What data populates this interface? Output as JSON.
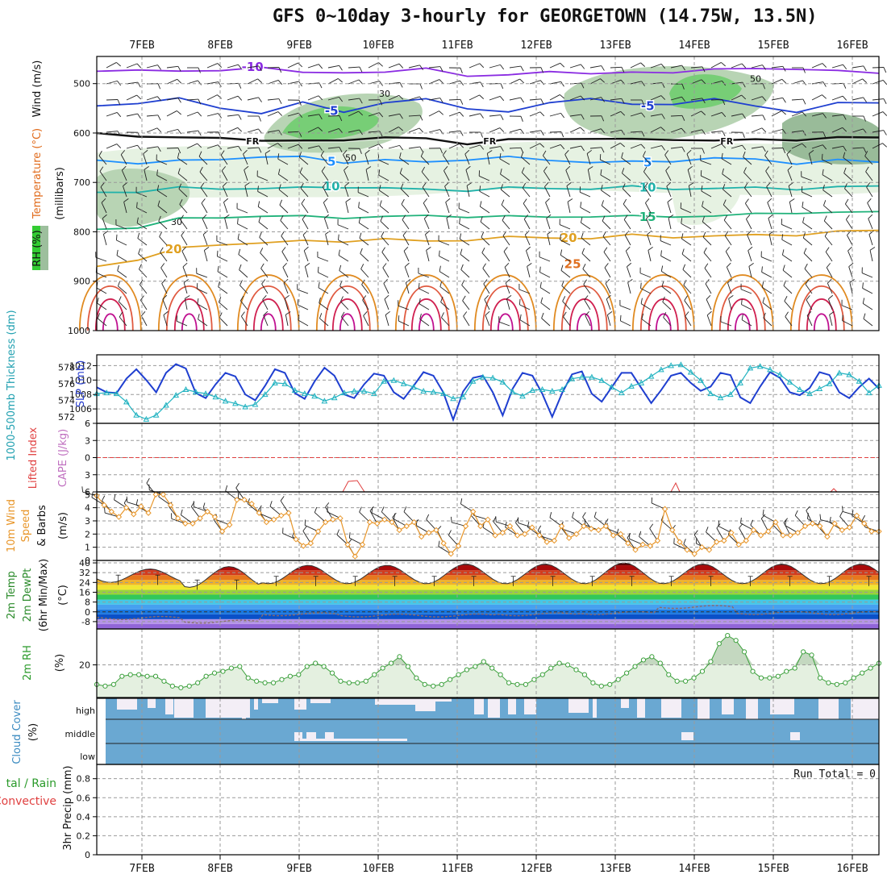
{
  "title": "GFS 0~10day 3-hourly for GEORGETOWN (14.75W, 13.5N)",
  "chart_data": [
    {
      "id": "upper-air",
      "type": "contour",
      "ylabel": "(millibars)",
      "side_labels": [
        "Wind (m/s)",
        "Temperature (°C)",
        "RH (%)"
      ],
      "yticks": [
        500,
        600,
        700,
        800,
        900,
        1000
      ],
      "ylim": [
        445,
        1000
      ],
      "x_dates": [
        "7FEB",
        "8FEB",
        "9FEB",
        "10FEB",
        "11FEB",
        "12FEB",
        "13FEB",
        "14FEB",
        "15FEB",
        "16FEB"
      ],
      "isotherms": [
        {
          "label": "-10",
          "level": -10,
          "color": "#8a2be2",
          "p": [
            475,
            470,
            478,
            472,
            466,
            480,
            475,
            478,
            470,
            482,
            485,
            475,
            478,
            480,
            476,
            470,
            472,
            468,
            475,
            480
          ],
          "labels_at": [
            "8FEB"
          ]
        },
        {
          "label": "-5",
          "level": -5,
          "color": "#1f3fd0",
          "p": [
            545,
            538,
            532,
            548,
            560,
            540,
            555,
            540,
            532,
            548,
            560,
            538,
            528,
            545,
            540,
            530,
            548,
            555,
            540,
            540
          ],
          "labels_at": [
            "9FEB",
            "13FEB"
          ]
        },
        {
          "label": "FR",
          "level": 0,
          "color": "#111111",
          "p": [
            600,
            605,
            612,
            608,
            615,
            618,
            612,
            610,
            612,
            620,
            615,
            612,
            610,
            615,
            612,
            615,
            615,
            612,
            610,
            610
          ],
          "labels_at": [
            "8FEB",
            "11FEB",
            "14FEB"
          ]
        },
        {
          "label": "5",
          "level": 5,
          "color": "#1e90ff",
          "p": [
            655,
            660,
            658,
            652,
            648,
            650,
            658,
            655,
            660,
            652,
            650,
            655,
            658,
            660,
            656,
            650,
            655,
            660,
            655,
            660
          ],
          "labels_at": [
            "9FEB",
            "13FEB"
          ]
        },
        {
          "label": "10",
          "level": 10,
          "color": "#20b2aa",
          "p": [
            720,
            718,
            712,
            712,
            712,
            712,
            708,
            712,
            715,
            715,
            712,
            712,
            712,
            710,
            712,
            712,
            712,
            712,
            710,
            708
          ],
          "labels_at": [
            "9FEB",
            "13FEB"
          ]
        },
        {
          "label": "15",
          "level": 15,
          "color": "#20b27a",
          "p": [
            795,
            790,
            775,
            770,
            768,
            770,
            770,
            770,
            768,
            768,
            770,
            770,
            768,
            770,
            768,
            768,
            765,
            760,
            762,
            760
          ],
          "labels_at": [
            "13FEB"
          ]
        },
        {
          "label": "20",
          "level": 20,
          "color": "#e0a020",
          "p": [
            870,
            855,
            835,
            825,
            822,
            820,
            818,
            815,
            820,
            815,
            812,
            812,
            812,
            808,
            810,
            808,
            808,
            805,
            800,
            798
          ],
          "labels_at": [
            "7FEB",
            "12FEB"
          ]
        },
        {
          "label": "25",
          "level": 25,
          "color": "#e07020",
          "p": [],
          "labels_at": [
            "12FEB"
          ]
        }
      ],
      "rh_contour_labels": [
        "30",
        "50"
      ]
    },
    {
      "id": "thickness-slp",
      "type": "line",
      "ylabel_left": "1000-500mb Thickness (dm)",
      "ylabel_right": "SLP (mb)",
      "yticks_left": [
        572,
        574,
        576,
        578
      ],
      "yticks_right": [
        1006,
        1008,
        1010,
        1012
      ],
      "series": [
        {
          "name": "SLP (mb)",
          "color": "#1f3fd0",
          "values": [
            1009,
            1008.3,
            1008.2,
            1010.2,
            1011.5,
            1010,
            1008.3,
            1011,
            1012.2,
            1011.6,
            1008.2,
            1007.5,
            1009.4,
            1011,
            1010.5,
            1008,
            1007.2,
            1009.2,
            1011.5,
            1011,
            1008.2,
            1007.4,
            1009.8,
            1011.7,
            1010.6,
            1008,
            1007.5,
            1009.4,
            1010.9,
            1010.6,
            1008.3,
            1007.4,
            1009.2,
            1011.1,
            1010.6,
            1008.3,
            1004.5,
            1008.4,
            1010.3,
            1010.6,
            1008.3,
            1005.1,
            1008.8,
            1011,
            1010.6,
            1008.1,
            1004.9,
            1008.2,
            1010.8,
            1011.2,
            1008.1,
            1007,
            1009,
            1011,
            1011,
            1008.9,
            1006.8,
            1008.6,
            1010.6,
            1011,
            1009.6,
            1008.5,
            1009.1,
            1011,
            1010.7,
            1007.6,
            1006.8,
            1009.1,
            1011.1,
            1010.3,
            1008.3,
            1007.9,
            1008.9,
            1011.1,
            1010.7,
            1008.3,
            1007.5,
            1009,
            1010.2,
            1008.8
          ]
        },
        {
          "name": "1000-500mb Thickness (dm)",
          "color": "#20b2c0",
          "values": [
            574.8,
            574.9,
            574.8,
            573.8,
            572.2,
            571.7,
            572.2,
            573.4,
            574.6,
            575.3,
            575,
            574.8,
            574.4,
            573.9,
            573.6,
            573.2,
            573.5,
            574.7,
            576.1,
            576,
            575.2,
            574.8,
            574.5,
            573.9,
            574.3,
            574.9,
            575.1,
            575.1,
            574.8,
            576.3,
            576.4,
            576,
            575.6,
            575.1,
            575,
            574.8,
            574.2,
            574.4,
            576.3,
            576.8,
            576.7,
            576.2,
            575,
            574.5,
            575.2,
            575.3,
            575.1,
            575.3,
            576.6,
            576.8,
            576.8,
            576.4,
            575.6,
            574.9,
            575.7,
            576.1,
            576.9,
            577.7,
            578.2,
            578.3,
            577.4,
            576.4,
            574.8,
            574.3,
            574.7,
            576.1,
            577.9,
            578.1,
            577.7,
            577.1,
            576.2,
            575.3,
            574.8,
            575.4,
            576,
            577.3,
            577.1,
            576.3,
            574.9,
            575.8
          ]
        }
      ]
    },
    {
      "id": "stability",
      "type": "line",
      "ylabel_left": "Lifted Index",
      "ylabel_right": "CAPE (J/kg)",
      "yticks": [
        -6,
        -3,
        0,
        3,
        6
      ],
      "ylim": [
        6,
        -6
      ],
      "zero_line": true
    },
    {
      "id": "wind10m",
      "type": "line",
      "ylabel": "10m Wind Speed & Barbs (m/s)",
      "yticks": [
        0,
        1,
        2,
        3,
        4,
        5
      ],
      "ylim": [
        0,
        5.2
      ],
      "series": [
        {
          "name": "10m Wind Speed",
          "color": "#e8962a",
          "values": [
            4.9,
            4.2,
            3.7,
            3.3,
            4,
            3.5,
            4.1,
            3.6,
            5,
            5,
            4.2,
            3.2,
            2.8,
            2.8,
            3.2,
            3.7,
            3.3,
            2.2,
            2.7,
            4.6,
            4.6,
            4.3,
            3.6,
            2.9,
            3.1,
            3.4,
            3.6,
            1.6,
            1.1,
            1.3,
            2.2,
            2.9,
            3.1,
            3.2,
            1.2,
            0.3,
            1.2,
            2.9,
            2.8,
            3.1,
            2.9,
            2.3,
            2.6,
            2.9,
            1.8,
            2.1,
            2.3,
            1.3,
            0.5,
            1.1,
            2.6,
            3.7,
            2.6,
            3.1,
            1.9,
            2.1,
            2.6,
            1.9,
            2,
            2.5,
            1.9,
            1.4,
            1.5,
            2.6,
            1.7,
            2,
            2.6,
            2.4,
            2.3,
            2.6,
            1.9,
            2,
            1.3,
            0.8,
            1.2,
            1.1,
            1.5,
            3.9,
            2.3,
            1.4,
            0.8,
            0.5,
            1,
            0.8,
            1.4,
            1.5,
            2.1,
            1.2,
            1.5,
            2.3,
            1.9,
            2.2,
            2.9,
            1.9,
            1.9,
            2.1,
            2.6,
            2.8,
            2.6,
            1.8,
            2.8,
            2.3,
            2.5,
            3.4,
            2.8,
            2.2,
            2.2
          ]
        }
      ]
    },
    {
      "id": "temp2m",
      "type": "area",
      "ylabel": "2m Temp / 2m DewPt (6hr Min/Max) (°C)",
      "yticks": [
        -8,
        0,
        8,
        16,
        24,
        32,
        40
      ],
      "ylim": [
        -14,
        42
      ],
      "band_colors": [
        "#9166d8",
        "#b494e8",
        "#0a50c8",
        "#1a78e0",
        "#46a0f0",
        "#46c8e6",
        "#32c85a",
        "#9ad23c",
        "#f0e632",
        "#f0b428",
        "#e6781e",
        "#d23c1e",
        "#aa0a0a",
        "#5a0000"
      ],
      "daily_max": [
        35,
        37,
        38,
        38,
        39,
        39,
        40,
        39,
        39,
        39
      ],
      "daily_min": [
        24,
        20,
        23,
        23,
        23,
        23,
        23,
        23,
        23,
        23
      ],
      "dewpoint": [
        -5,
        -8,
        -2,
        -3,
        -3,
        -2,
        -1,
        4,
        -1,
        -1
      ]
    },
    {
      "id": "rh2m",
      "type": "area",
      "ylabel": "2m RH (%)",
      "yticks": [
        20
      ],
      "ylim": [
        0,
        42
      ],
      "series": [
        {
          "name": "2m RH",
          "color": "#3ca03c",
          "values": [
            8,
            7,
            8,
            13,
            14,
            14,
            13,
            13,
            10,
            7,
            6,
            7,
            9,
            13,
            15,
            16,
            18,
            19,
            12,
            10,
            9,
            9,
            11,
            13,
            14,
            19,
            21,
            19,
            15,
            10,
            9,
            9,
            10,
            14,
            18,
            21,
            25,
            19,
            12,
            8,
            7,
            8,
            11,
            14,
            17,
            19,
            22,
            18,
            14,
            9,
            8,
            8,
            11,
            14,
            18,
            21,
            20,
            17,
            14,
            9,
            7,
            8,
            11,
            15,
            19,
            23,
            25,
            21,
            14,
            10,
            10,
            12,
            16,
            22,
            33,
            38,
            35,
            28,
            16,
            12,
            12,
            13,
            16,
            18,
            28,
            26,
            12,
            9,
            8,
            9,
            12,
            15,
            18,
            21
          ]
        }
      ]
    },
    {
      "id": "cloud",
      "type": "heatmap",
      "ylabel": "Cloud Cover (%)",
      "rows": [
        "high",
        "middle",
        "low"
      ],
      "colors": {
        "cloud": "#6aa8d2",
        "clear": "#f3eef6"
      }
    },
    {
      "id": "precip",
      "type": "bar",
      "ylabel": "3hr Precip (mm)",
      "ylabel_side": "Total / Rain / Convective",
      "yticks": [
        0,
        0.2,
        0.4,
        0.6,
        0.8
      ],
      "ylim": [
        0,
        0.95
      ],
      "run_total": "Run Total = 0",
      "values": []
    }
  ]
}
